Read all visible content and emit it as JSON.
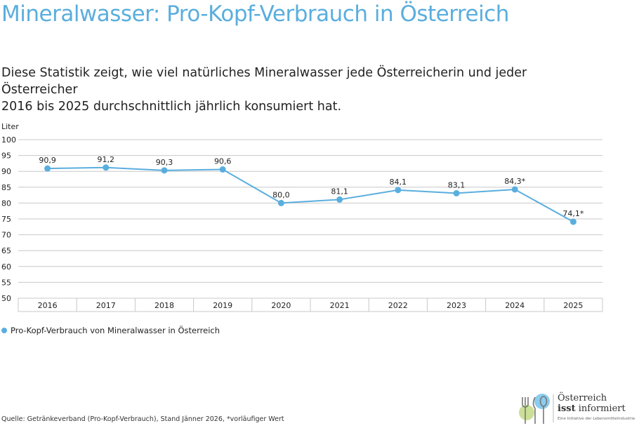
{
  "title": "Mineralwasser: Pro-Kopf-Verbrauch in Österreich",
  "subtitle_line1": "Diese Statistik zeigt, wie viel natürliches Mineralwasser jede Österreicherin und jeder Österreicher",
  "subtitle_line2": "2016 bis 2025 durchschnittlich jährlich konsumiert hat.",
  "source": "Quelle: Getränkeverband (Pro-Kopf-Verbrauch), Stand Jänner 2026, *vorläufiger Wert",
  "logo": {
    "line1": "Österreich",
    "line2a": "isst",
    "line2b": " informiert",
    "line3": "Eine Initiative der Lebensmittelindustrie"
  },
  "chart_data": {
    "type": "line",
    "ylabel": "Liter",
    "ylim": [
      50,
      100
    ],
    "yticks": [
      50,
      55,
      60,
      65,
      70,
      75,
      80,
      85,
      90,
      95,
      100
    ],
    "grid": true,
    "legend_position": "bottom-left",
    "categories": [
      "2016",
      "2017",
      "2018",
      "2019",
      "2020",
      "2021",
      "2022",
      "2023",
      "2024",
      "2025"
    ],
    "series": [
      {
        "name": "Pro-Kopf-Verbrauch von Mineralwasser in Österreich",
        "color": "#5aaede",
        "values": [
          90.9,
          91.2,
          90.3,
          90.6,
          80.0,
          81.1,
          84.1,
          83.1,
          84.3,
          74.1
        ],
        "labels": [
          "90,9",
          "91,2",
          "90,3",
          "90,6",
          "80,0",
          "81,1",
          "84,1",
          "83,1",
          "84,3*",
          "74,1*"
        ]
      }
    ]
  }
}
